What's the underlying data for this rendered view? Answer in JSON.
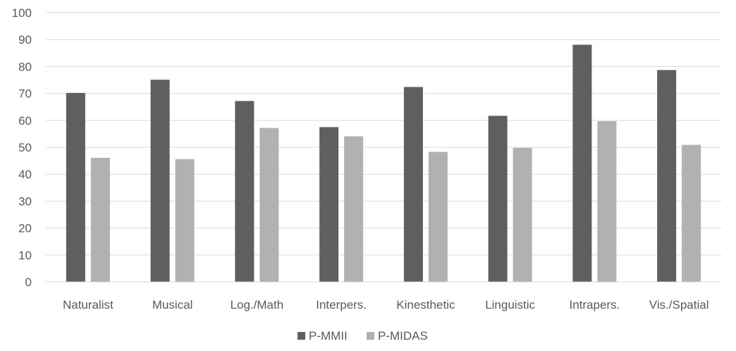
{
  "chart_data": {
    "type": "bar",
    "categories": [
      "Naturalist",
      "Musical",
      "Log./Math",
      "Interpers.",
      "Kinesthetic",
      "Linguistic",
      "Intrapers.",
      "Vis./Spatial"
    ],
    "series": [
      {
        "name": "P-MMII",
        "color": "#5f5f5f",
        "values": [
          70.2,
          75.1,
          67.2,
          57.5,
          72.4,
          61.7,
          88.1,
          78.7
        ]
      },
      {
        "name": "P-MIDAS",
        "color": "#b1b1b1",
        "values": [
          46.1,
          45.6,
          57.2,
          54.1,
          48.3,
          49.8,
          59.7,
          50.9
        ]
      }
    ],
    "yticks": [
      "0",
      "10",
      "20",
      "30",
      "40",
      "50",
      "60",
      "70",
      "80",
      "90",
      "100"
    ],
    "ylim": [
      0,
      100
    ],
    "grid": true,
    "legend": "bottom-center",
    "title": "",
    "xlabel": "",
    "ylabel": ""
  }
}
